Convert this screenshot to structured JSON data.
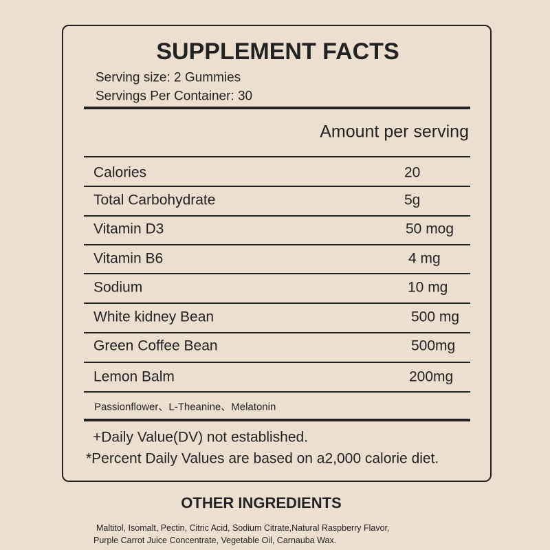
{
  "label": {
    "title": "SUPPLEMENT FACTS",
    "serving_size": "Serving size: 2 Gummies",
    "servings_per_container": "Servings Per Container: 30",
    "amount_header": "Amount per serving",
    "rows": [
      [
        "Calories",
        "20"
      ],
      [
        "Total Carbohydrate",
        "5g"
      ],
      [
        "Vitamin D3",
        "50 mog"
      ],
      [
        "Vitamin B6",
        "4 mg"
      ],
      [
        "Sodium",
        "10 mg"
      ],
      [
        "White kidney Bean",
        "500 mg"
      ],
      [
        "Green Coffee Bean",
        "500mg"
      ],
      [
        "Lemon Balm",
        "200mg"
      ]
    ],
    "other_blend": "Passionflower、L-Theanine、Melatonin",
    "notes": [
      "+Daily Value(DV) not established.",
      "*Percent Daily Values are based on a2,000 calorie diet."
    ]
  },
  "other_ingredients": {
    "title": "OTHER INGREDIENTS",
    "lines": [
      "Maltitol, Isomalt, Pectin, Citric Acid, Sodium Citrate,Natural Raspberry Flavor,",
      "Purple Carrot Juice Concentrate, Vegetable Oil, Carnauba Wax."
    ]
  }
}
